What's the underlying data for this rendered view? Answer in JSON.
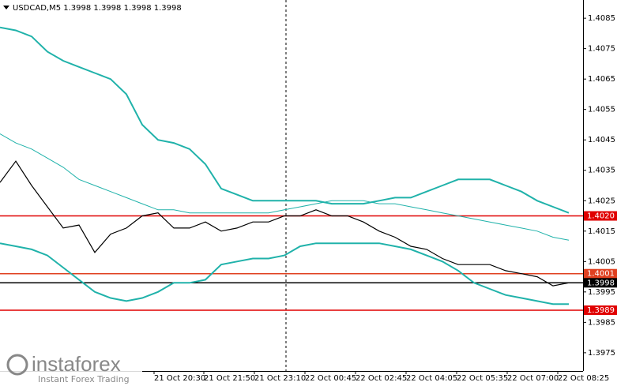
{
  "chart_data": {
    "type": "line",
    "title": "USDCAD,M5  1.3998 1.3998 1.3998 1.3998",
    "logo": {
      "name": "instaforex",
      "tagline": "Instant Forex Trading"
    },
    "x": [
      0,
      5,
      10,
      15,
      20,
      25,
      30,
      35,
      40,
      45,
      50,
      55,
      60,
      65,
      70,
      75,
      80,
      85,
      90,
      95,
      100,
      105,
      110,
      115,
      120,
      125,
      130,
      135,
      140,
      145,
      150,
      155,
      160,
      165,
      170,
      175,
      180
    ],
    "xlim": [
      0,
      184.5
    ],
    "xticks": [
      {
        "value": 48.75,
        "label": "21 Oct 20:30"
      },
      {
        "value": 64.5,
        "label": "21 Oct 21:50"
      },
      {
        "value": 80.5,
        "label": "21 Oct 23:10"
      },
      {
        "value": 96.5,
        "label": "22 Oct 00:45"
      },
      {
        "value": 112.5,
        "label": "22 Oct 02:45"
      },
      {
        "value": 128.5,
        "label": "22 Oct 04:05"
      },
      {
        "value": 144.5,
        "label": "22 Oct 05:35"
      },
      {
        "value": 160.5,
        "label": "22 Oct 07:00"
      },
      {
        "value": 176.5,
        "label": "22 Oct 08:25"
      }
    ],
    "ylim": [
      1.3969,
      1.4091
    ],
    "yticks": [
      1.4085,
      1.4075,
      1.4065,
      1.4055,
      1.4045,
      1.4035,
      1.4025,
      1.4015,
      1.4005,
      1.3995,
      1.3985,
      1.3975
    ],
    "series": [
      {
        "color": "#000000",
        "values": [
          1.4031,
          1.4038,
          1.403,
          1.4023,
          1.4016,
          1.4017,
          1.4008,
          1.4014,
          1.4016,
          1.402,
          1.4021,
          1.4016,
          1.4016,
          1.4018,
          1.4015,
          1.4016,
          1.4018,
          1.4018,
          1.402,
          1.402,
          1.4022,
          1.402,
          1.402,
          1.4018,
          1.4015,
          1.4013,
          1.401,
          1.4009,
          1.4006,
          1.4004,
          1.4004,
          1.4004,
          1.4002,
          1.4001,
          1.4,
          1.3997,
          1.3998
        ]
      },
      {
        "color": "#20b2aa",
        "values": [
          1.4082,
          1.4081,
          1.4079,
          1.4074,
          1.4071,
          1.4069,
          1.4067,
          1.4065,
          1.406,
          1.405,
          1.4045,
          1.4044,
          1.4042,
          1.4037,
          1.4029,
          1.4027,
          1.4025,
          1.4025,
          1.4025,
          1.4025,
          1.4025,
          1.4024,
          1.4024,
          1.4024,
          1.4025,
          1.4026,
          1.4026,
          1.4028,
          1.403,
          1.4032,
          1.4032,
          1.4032,
          1.403,
          1.4028,
          1.4025,
          1.4023,
          1.4021
        ]
      },
      {
        "color": "#20b2aa",
        "values": [
          1.4047,
          1.4044,
          1.4042,
          1.4039,
          1.4036,
          1.4032,
          1.403,
          1.4028,
          1.4026,
          1.4024,
          1.4022,
          1.4022,
          1.4021,
          1.4021,
          1.4021,
          1.4021,
          1.4021,
          1.4021,
          1.4022,
          1.4023,
          1.4024,
          1.4025,
          1.4025,
          1.4025,
          1.4024,
          1.4024,
          1.4023,
          1.4022,
          1.4021,
          1.402,
          1.4019,
          1.4018,
          1.4017,
          1.4016,
          1.4015,
          1.4013,
          1.4012
        ]
      },
      {
        "color": "#20b2aa",
        "values": [
          1.4011,
          1.401,
          1.4009,
          1.4007,
          1.4003,
          1.3999,
          1.3995,
          1.3993,
          1.3992,
          1.3993,
          1.3995,
          1.3998,
          1.3998,
          1.3999,
          1.4004,
          1.4005,
          1.4006,
          1.4006,
          1.4007,
          1.401,
          1.4011,
          1.4011,
          1.4011,
          1.4011,
          1.4011,
          1.401,
          1.4009,
          1.4007,
          1.4005,
          1.4002,
          1.3998,
          1.3996,
          1.3994,
          1.3993,
          1.3992,
          1.3991,
          1.3991
        ]
      }
    ],
    "levels": [
      {
        "value": 1.402,
        "label": "1.4020",
        "color": "#e00000"
      },
      {
        "value": 1.4001,
        "label": "1.4001",
        "color": "#e04020"
      },
      {
        "value": 1.3989,
        "label": "1.3989",
        "color": "#e00000"
      },
      {
        "value": 1.3998,
        "label": "1.3998",
        "color": "#000000"
      }
    ]
  }
}
